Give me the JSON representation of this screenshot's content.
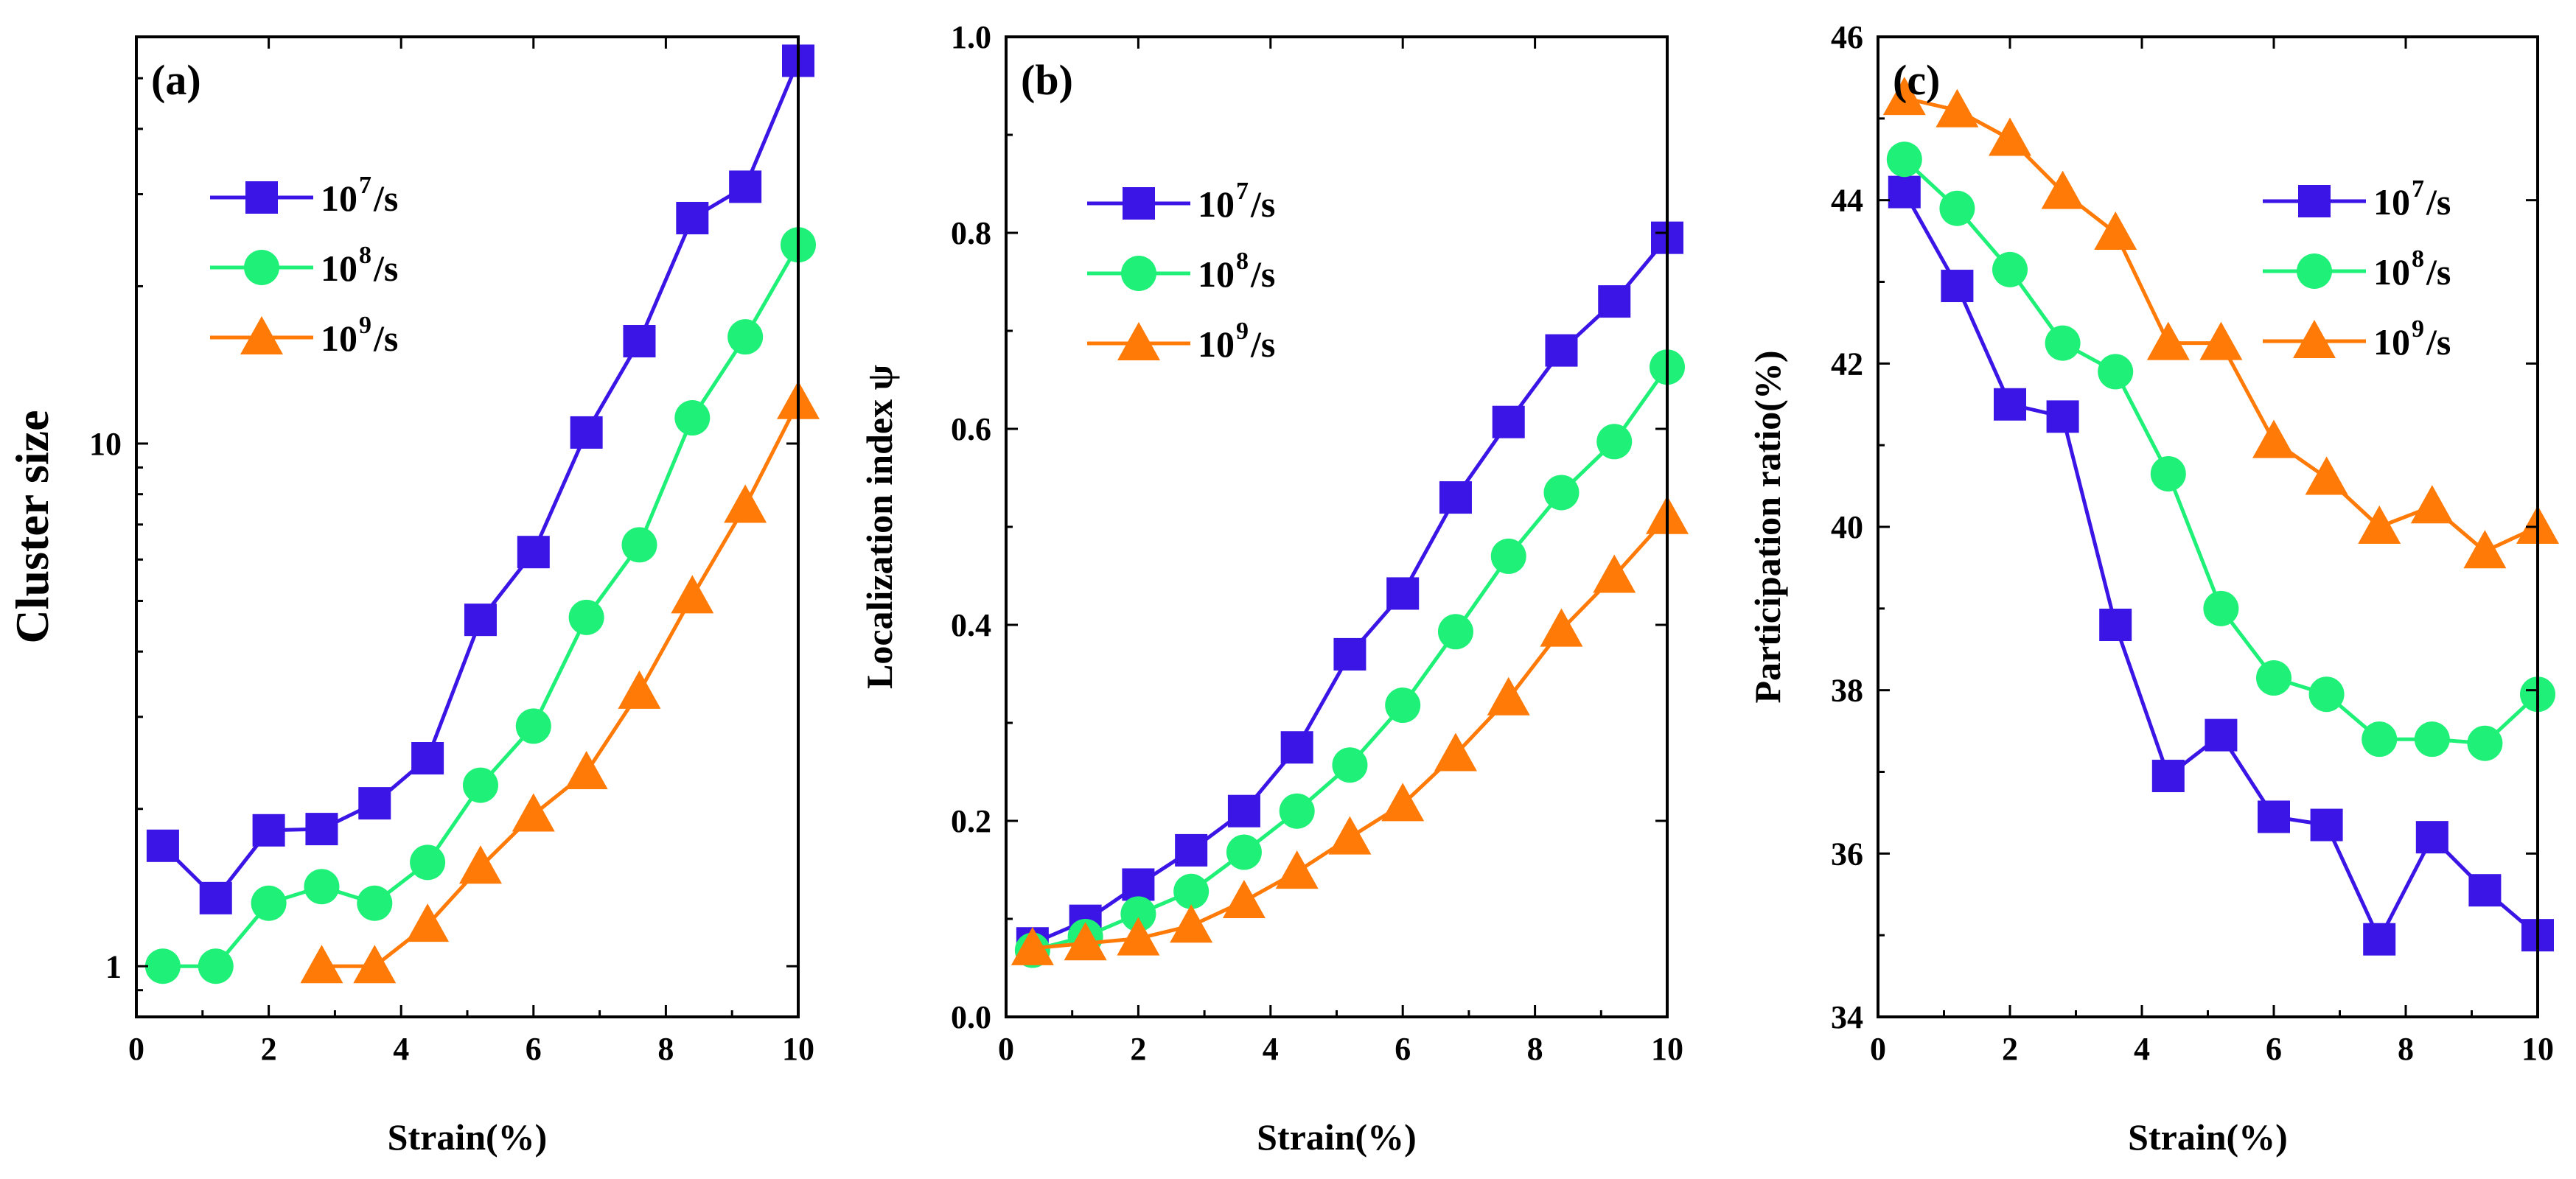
{
  "chart_data": [
    {
      "type": "line",
      "panel": "(a)",
      "ylabel": "Cluster size",
      "xlabel": "Strain(%)",
      "yscale": "log",
      "xlim": [
        0,
        10
      ],
      "ylim": [
        0.8,
        60
      ],
      "xticks": [
        0,
        2,
        4,
        6,
        8,
        10
      ],
      "yticks": [
        1,
        10
      ],
      "legend_position": "upper-left",
      "series": [
        {
          "name_base": "10",
          "name_exp": "7",
          "name_unit": "/s",
          "color": "#3b14e6",
          "marker": "square",
          "x": [
            0.4,
            1.2,
            2.0,
            2.8,
            3.6,
            4.4,
            5.2,
            6.0,
            6.8,
            7.6,
            8.4,
            9.2,
            10.0
          ],
          "y": [
            1.7,
            1.35,
            1.82,
            1.83,
            2.05,
            2.5,
            4.6,
            6.2,
            10.5,
            15.7,
            27.0,
            31.0,
            54.0
          ]
        },
        {
          "name_base": "10",
          "name_exp": "8",
          "name_unit": "/s",
          "color": "#1ff077",
          "marker": "circle",
          "x": [
            0.4,
            1.2,
            2.0,
            2.8,
            3.6,
            4.4,
            5.2,
            6.0,
            6.8,
            7.6,
            8.4,
            9.2,
            10.0
          ],
          "y": [
            1.0,
            1.0,
            1.32,
            1.42,
            1.32,
            1.58,
            2.22,
            2.88,
            4.65,
            6.4,
            11.2,
            16.0,
            24.0
          ]
        },
        {
          "name_base": "10",
          "name_exp": "9",
          "name_unit": "/s",
          "color": "#ff7a07",
          "marker": "triangle",
          "x": [
            2.8,
            3.6,
            4.4,
            5.2,
            6.0,
            6.8,
            7.6,
            8.4,
            9.2,
            10.0
          ],
          "y": [
            1.0,
            1.0,
            1.2,
            1.55,
            1.95,
            2.35,
            3.35,
            5.1,
            7.6,
            12.0
          ]
        }
      ]
    },
    {
      "type": "line",
      "panel": "(b)",
      "ylabel": "Localization index ψ",
      "xlabel": "Strain(%)",
      "yscale": "linear",
      "xlim": [
        0,
        10
      ],
      "ylim": [
        0.0,
        1.0
      ],
      "xticks": [
        0,
        2,
        4,
        6,
        8,
        10
      ],
      "yticks": [
        0.0,
        0.2,
        0.4,
        0.6,
        0.8,
        1.0
      ],
      "ytick_labels": [
        "0.0",
        "0.2",
        "0.4",
        "0.6",
        "0.8",
        "1.0"
      ],
      "legend_position": "upper-left",
      "series": [
        {
          "name_base": "10",
          "name_exp": "7",
          "name_unit": "/s",
          "color": "#3b14e6",
          "marker": "square",
          "x": [
            0.4,
            1.2,
            2.0,
            2.8,
            3.6,
            4.4,
            5.2,
            6.0,
            6.8,
            7.6,
            8.4,
            9.2,
            10.0
          ],
          "y": [
            0.075,
            0.098,
            0.135,
            0.17,
            0.21,
            0.275,
            0.37,
            0.432,
            0.53,
            0.607,
            0.68,
            0.73,
            0.795
          ]
        },
        {
          "name_base": "10",
          "name_exp": "8",
          "name_unit": "/s",
          "color": "#1ff077",
          "marker": "circle",
          "x": [
            0.4,
            1.2,
            2.0,
            2.8,
            3.6,
            4.4,
            5.2,
            6.0,
            6.8,
            7.6,
            8.4,
            9.2,
            10.0
          ],
          "y": [
            0.068,
            0.082,
            0.105,
            0.128,
            0.168,
            0.21,
            0.257,
            0.318,
            0.393,
            0.47,
            0.535,
            0.587,
            0.663
          ]
        },
        {
          "name_base": "10",
          "name_exp": "9",
          "name_unit": "/s",
          "color": "#ff7a07",
          "marker": "triangle",
          "x": [
            0.4,
            1.2,
            2.0,
            2.8,
            3.6,
            4.4,
            5.2,
            6.0,
            6.8,
            7.6,
            8.4,
            9.2,
            10.0
          ],
          "y": [
            0.07,
            0.075,
            0.08,
            0.093,
            0.118,
            0.148,
            0.183,
            0.217,
            0.268,
            0.325,
            0.395,
            0.45,
            0.51
          ]
        }
      ]
    },
    {
      "type": "line",
      "panel": "(c)",
      "ylabel": "Participation ratio(%)",
      "xlabel": "Strain(%)",
      "yscale": "linear",
      "xlim": [
        0,
        10
      ],
      "ylim": [
        34,
        46
      ],
      "xticks": [
        0,
        2,
        4,
        6,
        8,
        10
      ],
      "yticks": [
        34,
        36,
        38,
        40,
        42,
        44,
        46
      ],
      "legend_position": "upper-right",
      "series": [
        {
          "name_base": "10",
          "name_exp": "7",
          "name_unit": "/s",
          "color": "#3b14e6",
          "marker": "square",
          "x": [
            0.4,
            1.2,
            2.0,
            2.8,
            3.6,
            4.4,
            5.2,
            6.0,
            6.8,
            7.6,
            8.4,
            9.2,
            10.0
          ],
          "y": [
            44.1,
            42.95,
            41.5,
            41.35,
            38.8,
            36.95,
            37.45,
            36.45,
            36.35,
            34.95,
            36.2,
            35.55,
            35.0
          ]
        },
        {
          "name_base": "10",
          "name_exp": "8",
          "name_unit": "/s",
          "color": "#1ff077",
          "marker": "circle",
          "x": [
            0.4,
            1.2,
            2.0,
            2.8,
            3.6,
            4.4,
            5.2,
            6.0,
            6.8,
            7.6,
            8.4,
            9.2,
            10.0
          ],
          "y": [
            44.5,
            43.9,
            43.15,
            42.25,
            41.9,
            40.65,
            39.0,
            38.15,
            37.95,
            37.4,
            37.4,
            37.35,
            37.95
          ]
        },
        {
          "name_base": "10",
          "name_exp": "9",
          "name_unit": "/s",
          "color": "#ff7a07",
          "marker": "triangle",
          "x": [
            0.4,
            1.2,
            2.0,
            2.8,
            3.6,
            4.4,
            5.2,
            6.0,
            6.8,
            7.6,
            8.4,
            9.2,
            10.0
          ],
          "y": [
            45.25,
            45.1,
            44.75,
            44.1,
            43.6,
            42.25,
            42.25,
            41.05,
            40.6,
            40.0,
            40.25,
            39.7,
            40.0
          ]
        }
      ]
    }
  ]
}
